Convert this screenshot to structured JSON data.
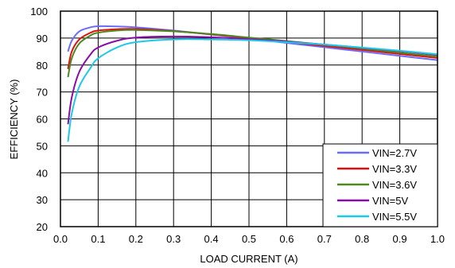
{
  "chart_data": {
    "type": "line",
    "title": "",
    "xlabel": "LOAD CURRENT (A)",
    "ylabel": "EFFICIENCY (%)",
    "xlim": [
      0,
      1.0
    ],
    "ylim": [
      20,
      100
    ],
    "x_ticks": [
      "0.0",
      "0.1",
      "0.2",
      "0.3",
      "0.4",
      "0.5",
      "0.6",
      "0.7",
      "0.8",
      "0.9",
      "1.0"
    ],
    "y_ticks": [
      "20",
      "30",
      "40",
      "50",
      "60",
      "70",
      "80",
      "90",
      "100"
    ],
    "grid": true,
    "legend_position": "bottom-right",
    "series": [
      {
        "name": "VIN=2.7V",
        "color": "#6b6bff",
        "points": [
          [
            0.02,
            85
          ],
          [
            0.03,
            89
          ],
          [
            0.05,
            92.5
          ],
          [
            0.08,
            94
          ],
          [
            0.1,
            94.4
          ],
          [
            0.15,
            94.3
          ],
          [
            0.2,
            94
          ],
          [
            0.3,
            92.8
          ],
          [
            0.4,
            91.3
          ],
          [
            0.5,
            89.8
          ],
          [
            0.6,
            88.2
          ],
          [
            0.7,
            86.6
          ],
          [
            0.8,
            85
          ],
          [
            0.9,
            83.4
          ],
          [
            1.0,
            81.8
          ]
        ]
      },
      {
        "name": "VIN=3.3V",
        "color": "#e01010",
        "points": [
          [
            0.02,
            78.5
          ],
          [
            0.03,
            85
          ],
          [
            0.05,
            89.5
          ],
          [
            0.08,
            92
          ],
          [
            0.1,
            92.8
          ],
          [
            0.15,
            93.3
          ],
          [
            0.2,
            93.4
          ],
          [
            0.3,
            92.6
          ],
          [
            0.4,
            91.4
          ],
          [
            0.5,
            90
          ],
          [
            0.6,
            88.6
          ],
          [
            0.7,
            87.1
          ],
          [
            0.8,
            85.6
          ],
          [
            0.9,
            84.1
          ],
          [
            1.0,
            82.6
          ]
        ]
      },
      {
        "name": "VIN=3.6V",
        "color": "#4a8a20",
        "points": [
          [
            0.02,
            75.5
          ],
          [
            0.03,
            82.5
          ],
          [
            0.05,
            88
          ],
          [
            0.08,
            91
          ],
          [
            0.1,
            92
          ],
          [
            0.15,
            92.8
          ],
          [
            0.2,
            93
          ],
          [
            0.3,
            92.5
          ],
          [
            0.4,
            91.5
          ],
          [
            0.5,
            90.2
          ],
          [
            0.6,
            88.9
          ],
          [
            0.7,
            87.5
          ],
          [
            0.8,
            86.1
          ],
          [
            0.9,
            84.6
          ],
          [
            1.0,
            83.2
          ]
        ]
      },
      {
        "name": "VIN=5V",
        "color": "#8a0aaa",
        "points": [
          [
            0.02,
            58
          ],
          [
            0.03,
            68
          ],
          [
            0.05,
            77.5
          ],
          [
            0.08,
            84
          ],
          [
            0.1,
            86.5
          ],
          [
            0.15,
            89
          ],
          [
            0.2,
            90.2
          ],
          [
            0.3,
            90.6
          ],
          [
            0.4,
            90.3
          ],
          [
            0.5,
            89.6
          ],
          [
            0.6,
            88.7
          ],
          [
            0.7,
            87.6
          ],
          [
            0.8,
            86.4
          ],
          [
            0.9,
            85.2
          ],
          [
            1.0,
            83.8
          ]
        ]
      },
      {
        "name": "VIN=5.5V",
        "color": "#1ec8e8",
        "points": [
          [
            0.02,
            51.5
          ],
          [
            0.03,
            62
          ],
          [
            0.05,
            72
          ],
          [
            0.08,
            79
          ],
          [
            0.1,
            82.5
          ],
          [
            0.15,
            86.5
          ],
          [
            0.2,
            88.5
          ],
          [
            0.3,
            89.5
          ],
          [
            0.4,
            89.5
          ],
          [
            0.5,
            89.2
          ],
          [
            0.6,
            88.5
          ],
          [
            0.7,
            87.6
          ],
          [
            0.8,
            86.5
          ],
          [
            0.9,
            85.3
          ],
          [
            1.0,
            84
          ]
        ]
      }
    ]
  }
}
